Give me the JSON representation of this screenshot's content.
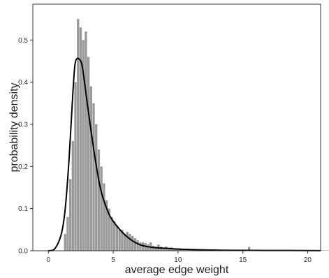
{
  "chart_data": {
    "type": "histogram",
    "title": "",
    "xlabel": "average edge weight",
    "ylabel": "probability density",
    "xlim": [
      -1.2,
      21.0
    ],
    "ylim": [
      0,
      0.585
    ],
    "xticks": [
      0,
      5,
      10,
      15,
      20
    ],
    "yticks": [
      0.0,
      0.1,
      0.2,
      0.3,
      0.4,
      0.5
    ],
    "ytick_labels": [
      "0.0",
      "0.1",
      "0.2",
      "0.3",
      "0.4",
      "0.5"
    ],
    "grid": false,
    "legend": "none",
    "bin_start": 1.2,
    "bin_width": 0.2,
    "histogram_density": [
      0.04,
      0.08,
      0.17,
      0.26,
      0.4,
      0.55,
      0.53,
      0.5,
      0.52,
      0.46,
      0.39,
      0.35,
      0.3,
      0.24,
      0.2,
      0.16,
      0.12,
      0.1,
      0.08,
      0.07,
      0.06,
      0.05,
      0.05,
      0.04,
      0.045,
      0.04,
      0.035,
      0.03,
      0.025,
      0.02,
      0.02,
      0.018,
      0.015,
      0.02,
      0.012,
      0.01,
      0.015,
      0.01,
      0.008,
      0.01,
      0.006,
      0.008,
      0.006,
      0.005,
      0.006,
      0.004,
      0.005,
      0.003,
      0.004,
      0.003,
      0.003,
      0.004,
      0.002,
      0.003,
      0.002,
      0.002,
      0.001,
      0.002,
      0.001,
      0.001,
      0.001,
      0.001,
      0.001,
      0.002,
      0.001,
      0.001,
      0.001,
      0.001,
      0.001,
      0.001,
      0.001,
      0.009,
      0.002,
      0.001,
      0.001,
      0.001,
      0.001,
      0.001,
      0.001,
      0.001,
      0.001,
      0.001,
      0.001,
      0.001,
      0.001,
      0.001,
      0.002,
      0.001,
      0.001,
      0.001,
      0.001,
      0.001,
      0.001,
      0.001,
      0.001,
      0.001,
      0.001,
      0.001,
      0.001,
      0.001,
      0.001,
      0.001,
      0.001,
      0.001,
      0.001,
      0.001,
      0.001,
      0.001,
      0.002,
      0.001,
      0.001,
      0.001,
      0.001,
      0.001,
      0.001,
      0.001,
      0.001,
      0.001,
      0.001,
      0.001,
      0.001,
      0.001,
      0.001,
      0.001,
      0.001,
      0.001,
      0.001,
      0.001,
      0.001,
      0.001,
      0.001,
      0.001,
      0.001,
      0.001,
      0.001,
      0.001,
      0.001,
      0.001,
      0.001,
      0.001,
      0.001,
      0.001,
      0.001,
      0.001,
      0.001,
      0.001,
      0.001,
      0.001,
      0.001,
      0.001,
      0.001,
      0.001,
      0.001,
      0.001,
      0.001,
      0.001,
      0.001,
      0.001,
      0.001,
      0.001,
      0.001,
      0.001,
      0.001,
      0.001,
      0.001,
      0.001,
      0.001,
      0.001,
      0.001,
      0.001,
      0.001,
      0.001,
      0.001,
      0.001,
      0.001,
      0.001,
      0.001,
      0.001,
      0.001,
      0.001,
      0.001,
      0.001,
      0.001,
      0.001,
      0.001,
      0.001,
      0.001,
      0.001,
      0.001,
      0.001,
      0.001,
      0.001,
      0.001
    ],
    "kde": {
      "x": [
        0.0,
        0.5,
        1.0,
        1.3,
        1.6,
        1.9,
        2.1,
        2.5,
        2.7,
        3.0,
        3.5,
        4.0,
        4.5,
        5.0,
        6.0,
        7.0,
        8.0,
        9.0,
        10.0,
        11.0,
        12.0,
        14.0,
        16.0,
        18.0,
        20.0,
        21.0
      ],
      "y": [
        0.0,
        0.005,
        0.04,
        0.1,
        0.22,
        0.38,
        0.45,
        0.45,
        0.42,
        0.35,
        0.24,
        0.15,
        0.1,
        0.07,
        0.035,
        0.015,
        0.008,
        0.006,
        0.004,
        0.003,
        0.002,
        0.001,
        0.0008,
        0.0006,
        0.0004,
        0.0002
      ]
    },
    "colors": {
      "bar": "#999999",
      "kde_line": "#000000",
      "frame": "#333333"
    }
  }
}
